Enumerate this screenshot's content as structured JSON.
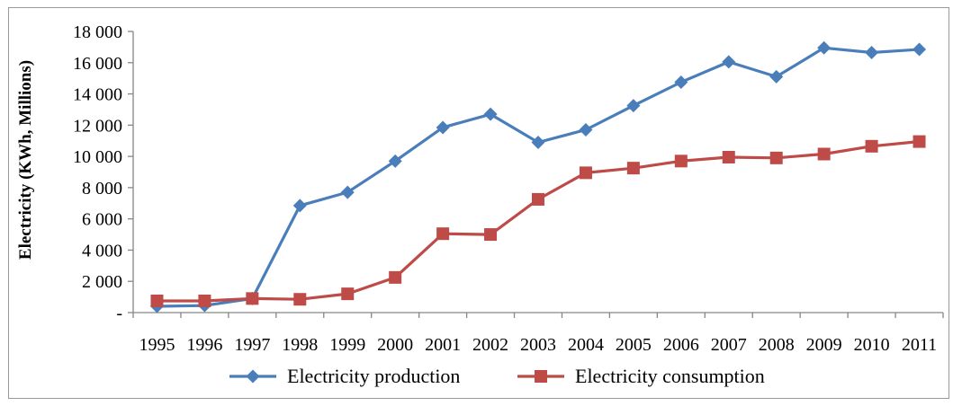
{
  "chart_data": {
    "type": "line",
    "ylabel": "Electricity (KWh, Millions)",
    "xlabel": "",
    "categories": [
      "1995",
      "1996",
      "1997",
      "1998",
      "1999",
      "2000",
      "2001",
      "2002",
      "2003",
      "2004",
      "2005",
      "2006",
      "2007",
      "2008",
      "2009",
      "2010",
      "2011"
    ],
    "ylim": [
      0,
      18000
    ],
    "y_ticks": [
      {
        "value": 0,
        "label": "-"
      },
      {
        "value": 2000,
        "label": "2 000"
      },
      {
        "value": 4000,
        "label": "4 000"
      },
      {
        "value": 6000,
        "label": "6 000"
      },
      {
        "value": 8000,
        "label": "8 000"
      },
      {
        "value": 10000,
        "label": "10 000"
      },
      {
        "value": 12000,
        "label": "12 000"
      },
      {
        "value": 14000,
        "label": "14 000"
      },
      {
        "value": 16000,
        "label": "16 000"
      },
      {
        "value": 18000,
        "label": "18 000"
      }
    ],
    "grid": false,
    "legend_position": "bottom",
    "series": [
      {
        "name": "Electricity production",
        "color": "#4a7ebb",
        "marker": "diamond",
        "values": [
          400,
          450,
          900,
          6850,
          7700,
          9700,
          11850,
          12700,
          10900,
          11700,
          13250,
          14750,
          16050,
          15100,
          16950,
          16650,
          16850
        ]
      },
      {
        "name": "Electricity consumption",
        "color": "#be4b48",
        "marker": "square",
        "values": [
          750,
          750,
          900,
          850,
          1200,
          2250,
          5050,
          5000,
          7250,
          8950,
          9250,
          9700,
          9950,
          9900,
          10150,
          10650,
          10950
        ]
      }
    ]
  }
}
